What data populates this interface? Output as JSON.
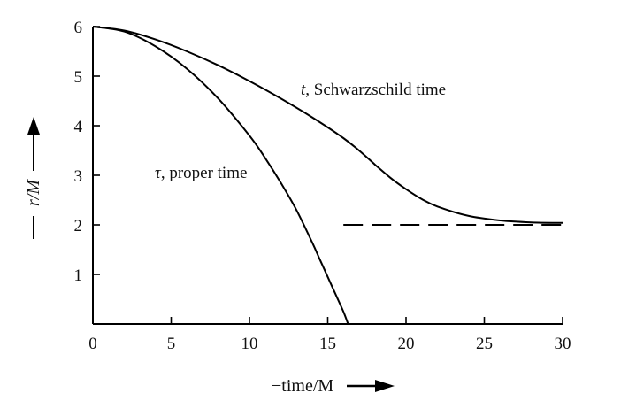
{
  "chart_data": {
    "type": "line",
    "xlabel": "−time/M",
    "ylabel": "r/M",
    "xlim": [
      0,
      30
    ],
    "ylim": [
      0,
      6
    ],
    "xticks": [
      "0",
      "5",
      "10",
      "15",
      "20",
      "25",
      "30"
    ],
    "yticks": [
      "1",
      "2",
      "3",
      "4",
      "5",
      "6"
    ],
    "grid": false,
    "series": [
      {
        "name": "t, Schwarzschild time",
        "label_math": "t",
        "label_text": ", Schwarzschild time",
        "style": "solid",
        "x": [
          0,
          2,
          4,
          6,
          8,
          10,
          12,
          14,
          16,
          17,
          18,
          19,
          20,
          21,
          22,
          24,
          26,
          28,
          30
        ],
        "y": [
          6.0,
          5.92,
          5.74,
          5.5,
          5.22,
          4.9,
          4.55,
          4.17,
          3.75,
          3.5,
          3.22,
          2.95,
          2.72,
          2.52,
          2.37,
          2.18,
          2.09,
          2.05,
          2.04
        ]
      },
      {
        "name": "τ, proper time",
        "label_math": "τ",
        "label_text": ", proper time",
        "style": "solid",
        "x": [
          0,
          2,
          4,
          6,
          8,
          10,
          11,
          12,
          13,
          14,
          14.5,
          15,
          15.5,
          16,
          16.3
        ],
        "y": [
          6.0,
          5.9,
          5.6,
          5.15,
          4.55,
          3.8,
          3.35,
          2.85,
          2.3,
          1.65,
          1.3,
          0.95,
          0.6,
          0.25,
          0.0
        ]
      },
      {
        "name": "r = 2M",
        "style": "dashed",
        "x": [
          16,
          30
        ],
        "y": [
          2,
          2
        ]
      }
    ]
  }
}
